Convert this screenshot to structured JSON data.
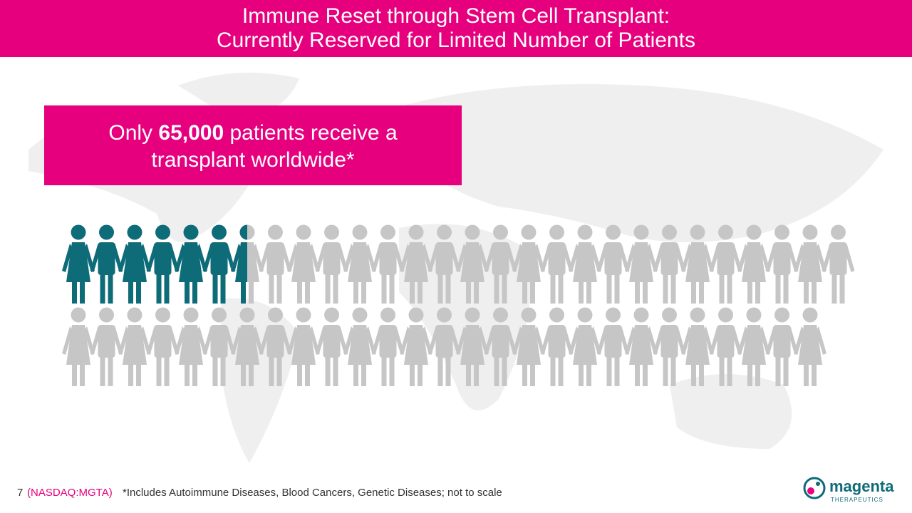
{
  "header": {
    "title_line1": "Immune Reset through Stem Cell Transplant:",
    "title_line2": "Currently Reserved for Limited Number of Patients"
  },
  "callout": {
    "prefix": "Only",
    "emphasis": "65,000",
    "suffix": "patients receive a",
    "line2": "transplant worldwide*"
  },
  "footer": {
    "page": "7",
    "ticker": "(NASDAQ:MGTA)",
    "footnote": "*Includes Autoimmune Diseases, Blood Cancers, Genetic Diseases; not to scale"
  },
  "logo": {
    "name": "magenta",
    "tagline": "THERAPEUTICS"
  }
}
